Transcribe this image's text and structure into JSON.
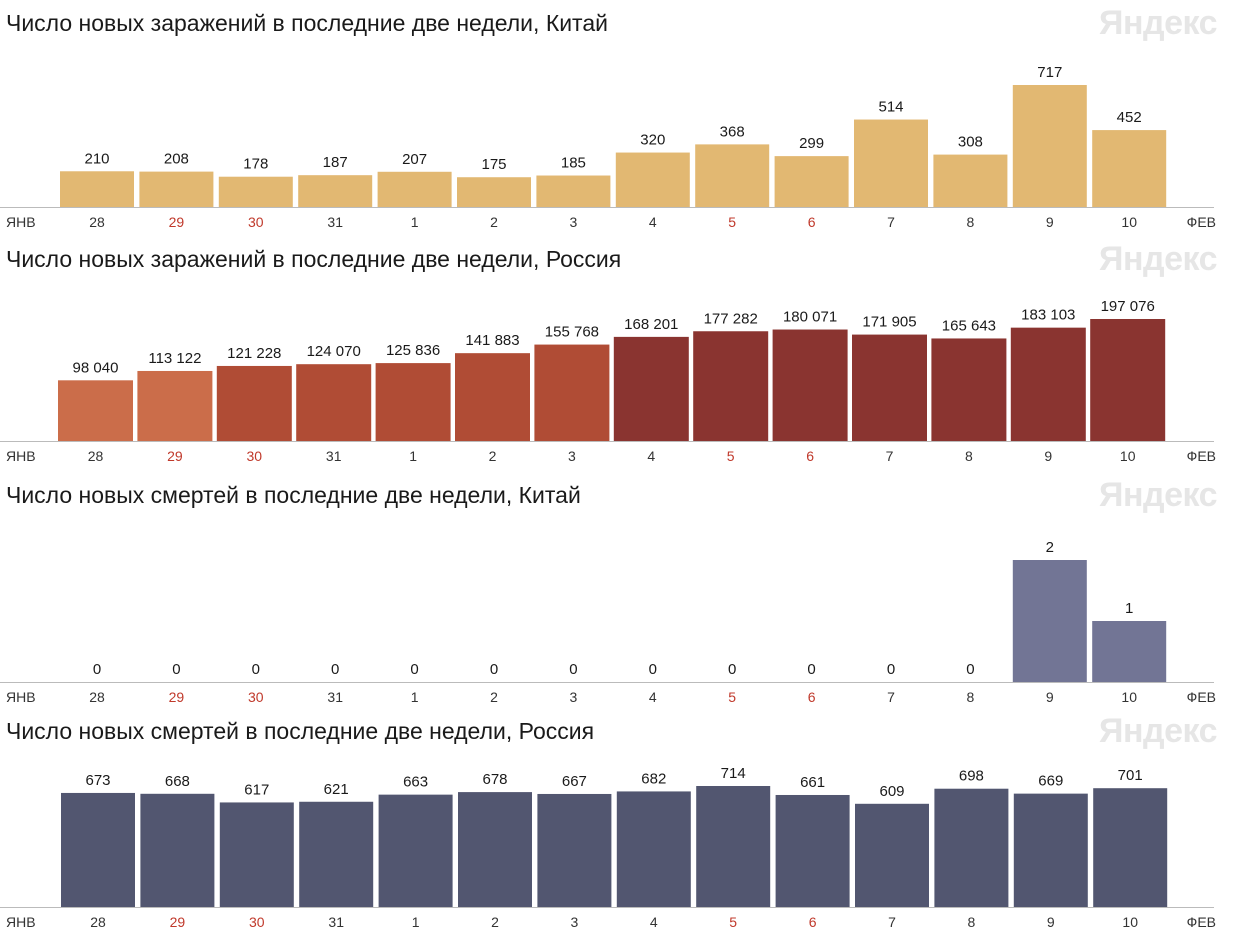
{
  "brand": "Яндекс",
  "colors": {
    "china_cases": "#e2b872",
    "russia_cases_early": "#cb6d4a",
    "russia_cases_mid": "#b04c35",
    "russia_cases_late": "#8a3430",
    "china_deaths": "#727595",
    "russia_deaths": "#525670",
    "weekend_tick": "#c0392b",
    "tick": "#333333",
    "axis": "#bbbbbb"
  },
  "chart_data": [
    {
      "type": "bar",
      "title": "Число новых заражений в последние две недели, Китай",
      "categories": [
        "28",
        "29",
        "30",
        "31",
        "1",
        "2",
        "3",
        "4",
        "5",
        "6",
        "7",
        "8",
        "9",
        "10"
      ],
      "weekend_categories": [
        "29",
        "30",
        "5",
        "6"
      ],
      "values": [
        210,
        208,
        178,
        187,
        207,
        175,
        185,
        320,
        368,
        299,
        514,
        308,
        717,
        452
      ],
      "value_labels": [
        "210",
        "208",
        "178",
        "187",
        "207",
        "175",
        "185",
        "320",
        "368",
        "299",
        "514",
        "308",
        "717",
        "452"
      ],
      "month_start_label": "ЯНВ",
      "month_end_label": "ФЕВ",
      "ylim": [
        0,
        717
      ],
      "bar_colors": [
        "china_cases"
      ]
    },
    {
      "type": "bar",
      "title": "Число новых заражений в последние две недели, Россия",
      "categories": [
        "28",
        "29",
        "30",
        "31",
        "1",
        "2",
        "3",
        "4",
        "5",
        "6",
        "7",
        "8",
        "9",
        "10"
      ],
      "weekend_categories": [
        "29",
        "30",
        "5",
        "6"
      ],
      "values": [
        98040,
        113122,
        121228,
        124070,
        125836,
        141883,
        155768,
        168201,
        177282,
        180071,
        171905,
        165643,
        183103,
        197076
      ],
      "value_labels": [
        "98 040",
        "113 122",
        "121 228",
        "124 070",
        "125 836",
        "141 883",
        "155 768",
        "168 201",
        "177 282",
        "180 071",
        "171 905",
        "165 643",
        "183 103",
        "197 076"
      ],
      "month_start_label": "ЯНВ",
      "month_end_label": "ФЕВ",
      "ylim": [
        0,
        197076
      ],
      "bar_colors": [
        "russia_cases_early",
        "russia_cases_early",
        "russia_cases_mid",
        "russia_cases_mid",
        "russia_cases_mid",
        "russia_cases_mid",
        "russia_cases_mid",
        "russia_cases_late",
        "russia_cases_late",
        "russia_cases_late",
        "russia_cases_late",
        "russia_cases_late",
        "russia_cases_late",
        "russia_cases_late"
      ]
    },
    {
      "type": "bar",
      "title": "Число новых смертей в последние две недели, Китай",
      "categories": [
        "28",
        "29",
        "30",
        "31",
        "1",
        "2",
        "3",
        "4",
        "5",
        "6",
        "7",
        "8",
        "9",
        "10"
      ],
      "weekend_categories": [
        "29",
        "30",
        "5",
        "6"
      ],
      "values": [
        0,
        0,
        0,
        0,
        0,
        0,
        0,
        0,
        0,
        0,
        0,
        0,
        2,
        1
      ],
      "value_labels": [
        "0",
        "0",
        "0",
        "0",
        "0",
        "0",
        "0",
        "0",
        "0",
        "0",
        "0",
        "0",
        "2",
        "1"
      ],
      "month_start_label": "ЯНВ",
      "month_end_label": "ФЕВ",
      "ylim": [
        0,
        2
      ],
      "bar_colors": [
        "china_deaths"
      ]
    },
    {
      "type": "bar",
      "title": "Число новых смертей в последние две недели, Россия",
      "categories": [
        "28",
        "29",
        "30",
        "31",
        "1",
        "2",
        "3",
        "4",
        "5",
        "6",
        "7",
        "8",
        "9",
        "10"
      ],
      "weekend_categories": [
        "29",
        "30",
        "5",
        "6"
      ],
      "values": [
        673,
        668,
        617,
        621,
        663,
        678,
        667,
        682,
        714,
        661,
        609,
        698,
        669,
        701
      ],
      "value_labels": [
        "673",
        "668",
        "617",
        "621",
        "663",
        "678",
        "667",
        "682",
        "714",
        "661",
        "609",
        "698",
        "669",
        "701"
      ],
      "month_start_label": "ЯНВ",
      "month_end_label": "ФЕВ",
      "ylim": [
        0,
        714
      ],
      "bar_colors": [
        "russia_deaths"
      ]
    }
  ]
}
